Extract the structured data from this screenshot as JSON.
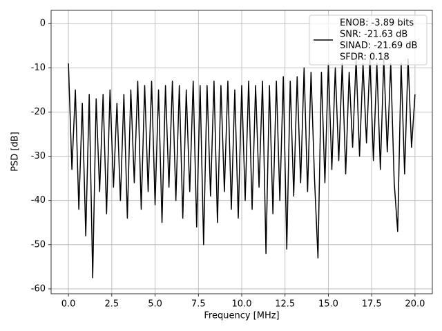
{
  "chart_data": {
    "type": "line",
    "xlabel": "Frequency [MHz]",
    "ylabel": "PSD [dB]",
    "x": [
      0,
      0.2,
      0.4,
      0.6,
      0.8,
      1.0,
      1.2,
      1.4,
      1.6,
      1.8,
      2.0,
      2.2,
      2.4,
      2.6,
      2.8,
      3.0,
      3.2,
      3.4,
      3.6,
      3.8,
      4.0,
      4.2,
      4.4,
      4.6,
      4.8,
      5.0,
      5.2,
      5.4,
      5.6,
      5.8,
      6.0,
      6.2,
      6.4,
      6.6,
      6.8,
      7.0,
      7.2,
      7.4,
      7.6,
      7.8,
      8.0,
      8.2,
      8.4,
      8.6,
      8.8,
      9.0,
      9.2,
      9.4,
      9.6,
      9.8,
      10.0,
      10.2,
      10.4,
      10.6,
      10.8,
      11.0,
      11.2,
      11.4,
      11.6,
      11.8,
      12.0,
      12.2,
      12.4,
      12.6,
      12.8,
      13.0,
      13.2,
      13.4,
      13.6,
      13.8,
      14.0,
      14.2,
      14.4,
      14.6,
      14.8,
      15.0,
      15.2,
      15.4,
      15.6,
      15.8,
      16.0,
      16.2,
      16.4,
      16.6,
      16.8,
      17.0,
      17.2,
      17.4,
      17.6,
      17.8,
      18.0,
      18.2,
      18.4,
      18.6,
      18.8,
      19.0,
      19.2,
      19.4,
      19.6,
      19.8,
      20.0
    ],
    "series": [
      {
        "name": "ENOB: -3.89 bits\nSNR: -21.63 dB\nSINAD: -21.69 dB\nSFDR: 0.18",
        "color": "#000000",
        "values": [
          -9,
          -33,
          -15,
          -42,
          -18,
          -48,
          -16,
          -57.5,
          -17,
          -38,
          -16,
          -43,
          -15,
          -37,
          -18,
          -40,
          -16,
          -44,
          -15,
          -36,
          -13,
          -42,
          -14,
          -38,
          -13,
          -41,
          -15,
          -45,
          -14,
          -37,
          -13,
          -40,
          -14,
          -44,
          -15,
          -38,
          -13,
          -46,
          -14,
          -50,
          -14,
          -39,
          -13,
          -45,
          -14,
          -38,
          -13,
          -42,
          -15,
          -44,
          -14,
          -40,
          -13,
          -42,
          -14,
          -37,
          -13,
          -52,
          -14,
          -43,
          -13,
          -40,
          -12,
          -51,
          -13,
          -39,
          -12,
          -36,
          -10,
          -38,
          -11,
          -35,
          -53,
          -11,
          -36,
          -9,
          -33,
          -10,
          -31,
          -9,
          -34,
          -11,
          -28,
          -8,
          -30,
          -9,
          -27,
          -8,
          -31,
          -9,
          -33,
          -8,
          -29,
          -9,
          -36,
          -47,
          -9,
          -34,
          -8,
          -28,
          -16
        ]
      }
    ],
    "xlim": [
      -1,
      21
    ],
    "ylim": [
      -61.1,
      3.0
    ],
    "xticks": [
      {
        "value": 0,
        "label": "0.0"
      },
      2.5,
      {
        "value": 5,
        "label": "5.0"
      },
      7.5,
      {
        "value": 10,
        "label": "10.0"
      },
      12.5,
      {
        "value": 15,
        "label": "15.0"
      },
      17.5,
      {
        "value": 20,
        "label": "20.0"
      }
    ],
    "yticks": [
      0,
      -10,
      -20,
      -30,
      -40,
      -50,
      -60
    ],
    "grid": true,
    "legend": "upper right"
  }
}
